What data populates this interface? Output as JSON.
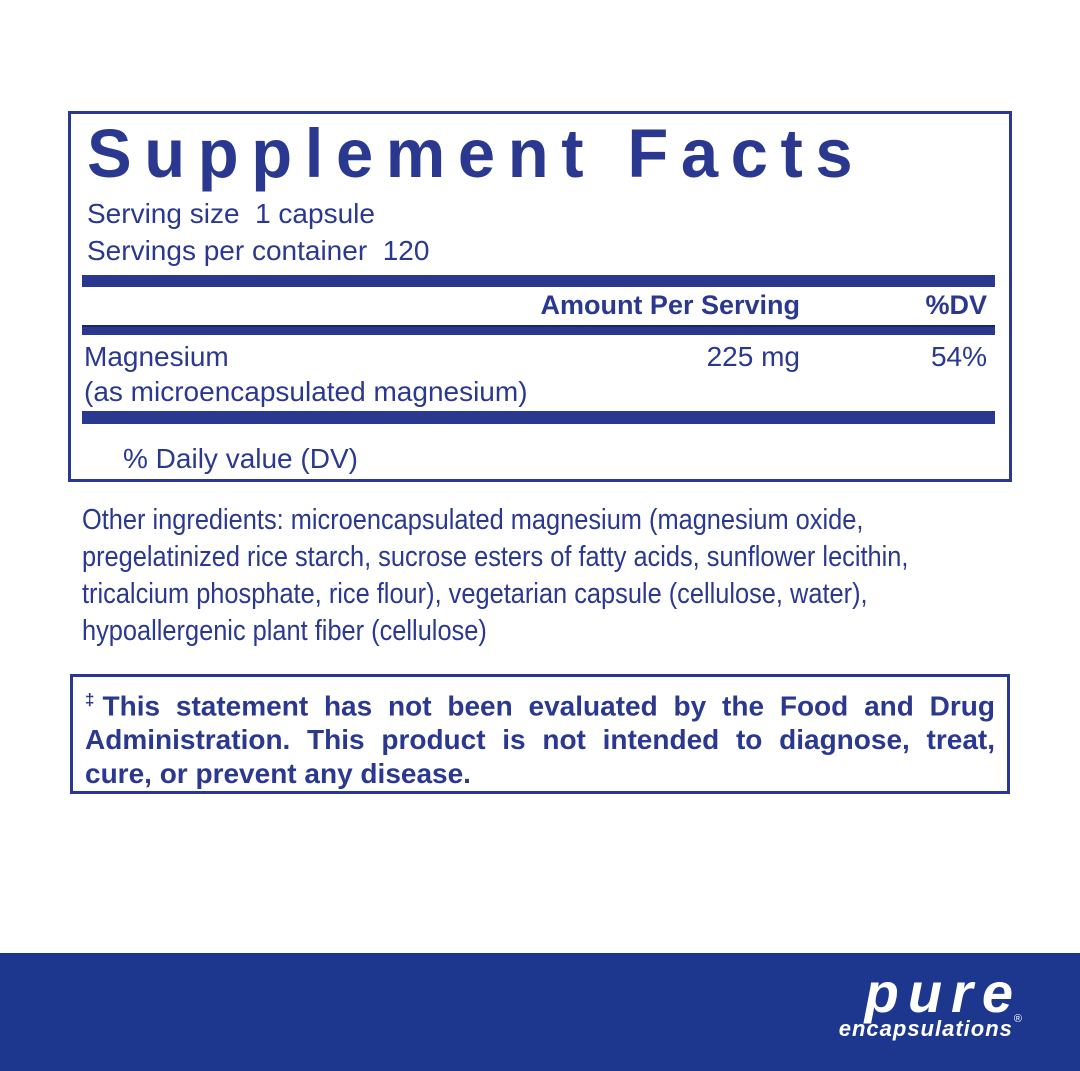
{
  "colors": {
    "navy": "#2b3890",
    "footerBlue": "#1d378e",
    "white": "#ffffff"
  },
  "panel": {
    "title": "Supplement Facts",
    "serving_size_line": "Serving size  1 capsule",
    "servings_per_container_line": "Servings per container  120",
    "header": {
      "amount": "Amount Per Serving",
      "dv": "%DV"
    },
    "rows": [
      {
        "name": "Magnesium",
        "sub": "(as microencapsulated magnesium)",
        "amount": "225 mg",
        "dv": "54%"
      }
    ],
    "footnote": "% Daily value (DV)"
  },
  "other_ingredients": {
    "lines": [
      "Other ingredients: microencapsulated magnesium (magnesium oxide,",
      "pregelatinized rice starch, sucrose esters of fatty acids, sunflower lecithin,",
      "tricalcium phosphate, rice flour), vegetarian capsule (cellulose, water),",
      "hypoallergenic plant fiber (cellulose)"
    ]
  },
  "disclaimer": {
    "dagger": "‡",
    "lines": [
      "This statement has not been evaluated by the Food and Drug",
      "Administration. This product is not intended to diagnose, treat,",
      "cure, or prevent any disease."
    ]
  },
  "brand": {
    "name": "pure",
    "subname": "encapsulations",
    "registered": "®"
  }
}
